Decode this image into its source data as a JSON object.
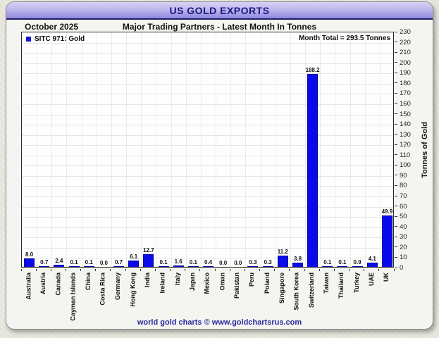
{
  "header": {
    "title": "US GOLD EXPORTS"
  },
  "subtitle": {
    "date": "October 2025",
    "text": "Major Trading Partners - Latest Month In Tonnes"
  },
  "legend": {
    "label": "SITC 971: Gold"
  },
  "annotation": {
    "month_total": "Month Total = 293.5 Tonnes"
  },
  "chart_data": {
    "type": "bar",
    "title": "Major Trading Partners - Latest Month In Tonnes",
    "categories": [
      "Australia",
      "Austria",
      "Canada",
      "Cayman Islands",
      "China",
      "Costa Rica",
      "Germany",
      "Hong Kong",
      "India",
      "Ireland",
      "Italy",
      "Japan",
      "Mexico",
      "Oman",
      "Pakistan",
      "Peru",
      "Poland",
      "Singapore",
      "South Korea",
      "Switzerland",
      "Taiwan",
      "Thailand",
      "Turkey",
      "UAE",
      "UK"
    ],
    "values": [
      8.0,
      0.7,
      2.4,
      0.1,
      0.1,
      0.0,
      0.7,
      6.1,
      12.7,
      0.1,
      1.6,
      0.1,
      0.4,
      0.0,
      0.0,
      0.3,
      0.3,
      11.2,
      3.8,
      188.2,
      0.1,
      0.1,
      0.9,
      4.1,
      49.9
    ],
    "xlabel": "",
    "ylabel": "Tonnes of Gold",
    "ylim": [
      0,
      230
    ],
    "ytick_step": 10,
    "grid": true,
    "legend_position": "top-left",
    "bar_color": "#0a0ae8"
  },
  "footer": {
    "text": "world gold charts © www.goldchartsrus.com"
  },
  "colors": {
    "header_gradient_top": "#d6d2f6",
    "header_gradient_bottom": "#8e87de",
    "title_text": "#1c1680",
    "bar": "#0a0ae8",
    "footer_text": "#29299a",
    "panel_bg": "#f4f4f1",
    "plot_bg": "#fefefe"
  }
}
